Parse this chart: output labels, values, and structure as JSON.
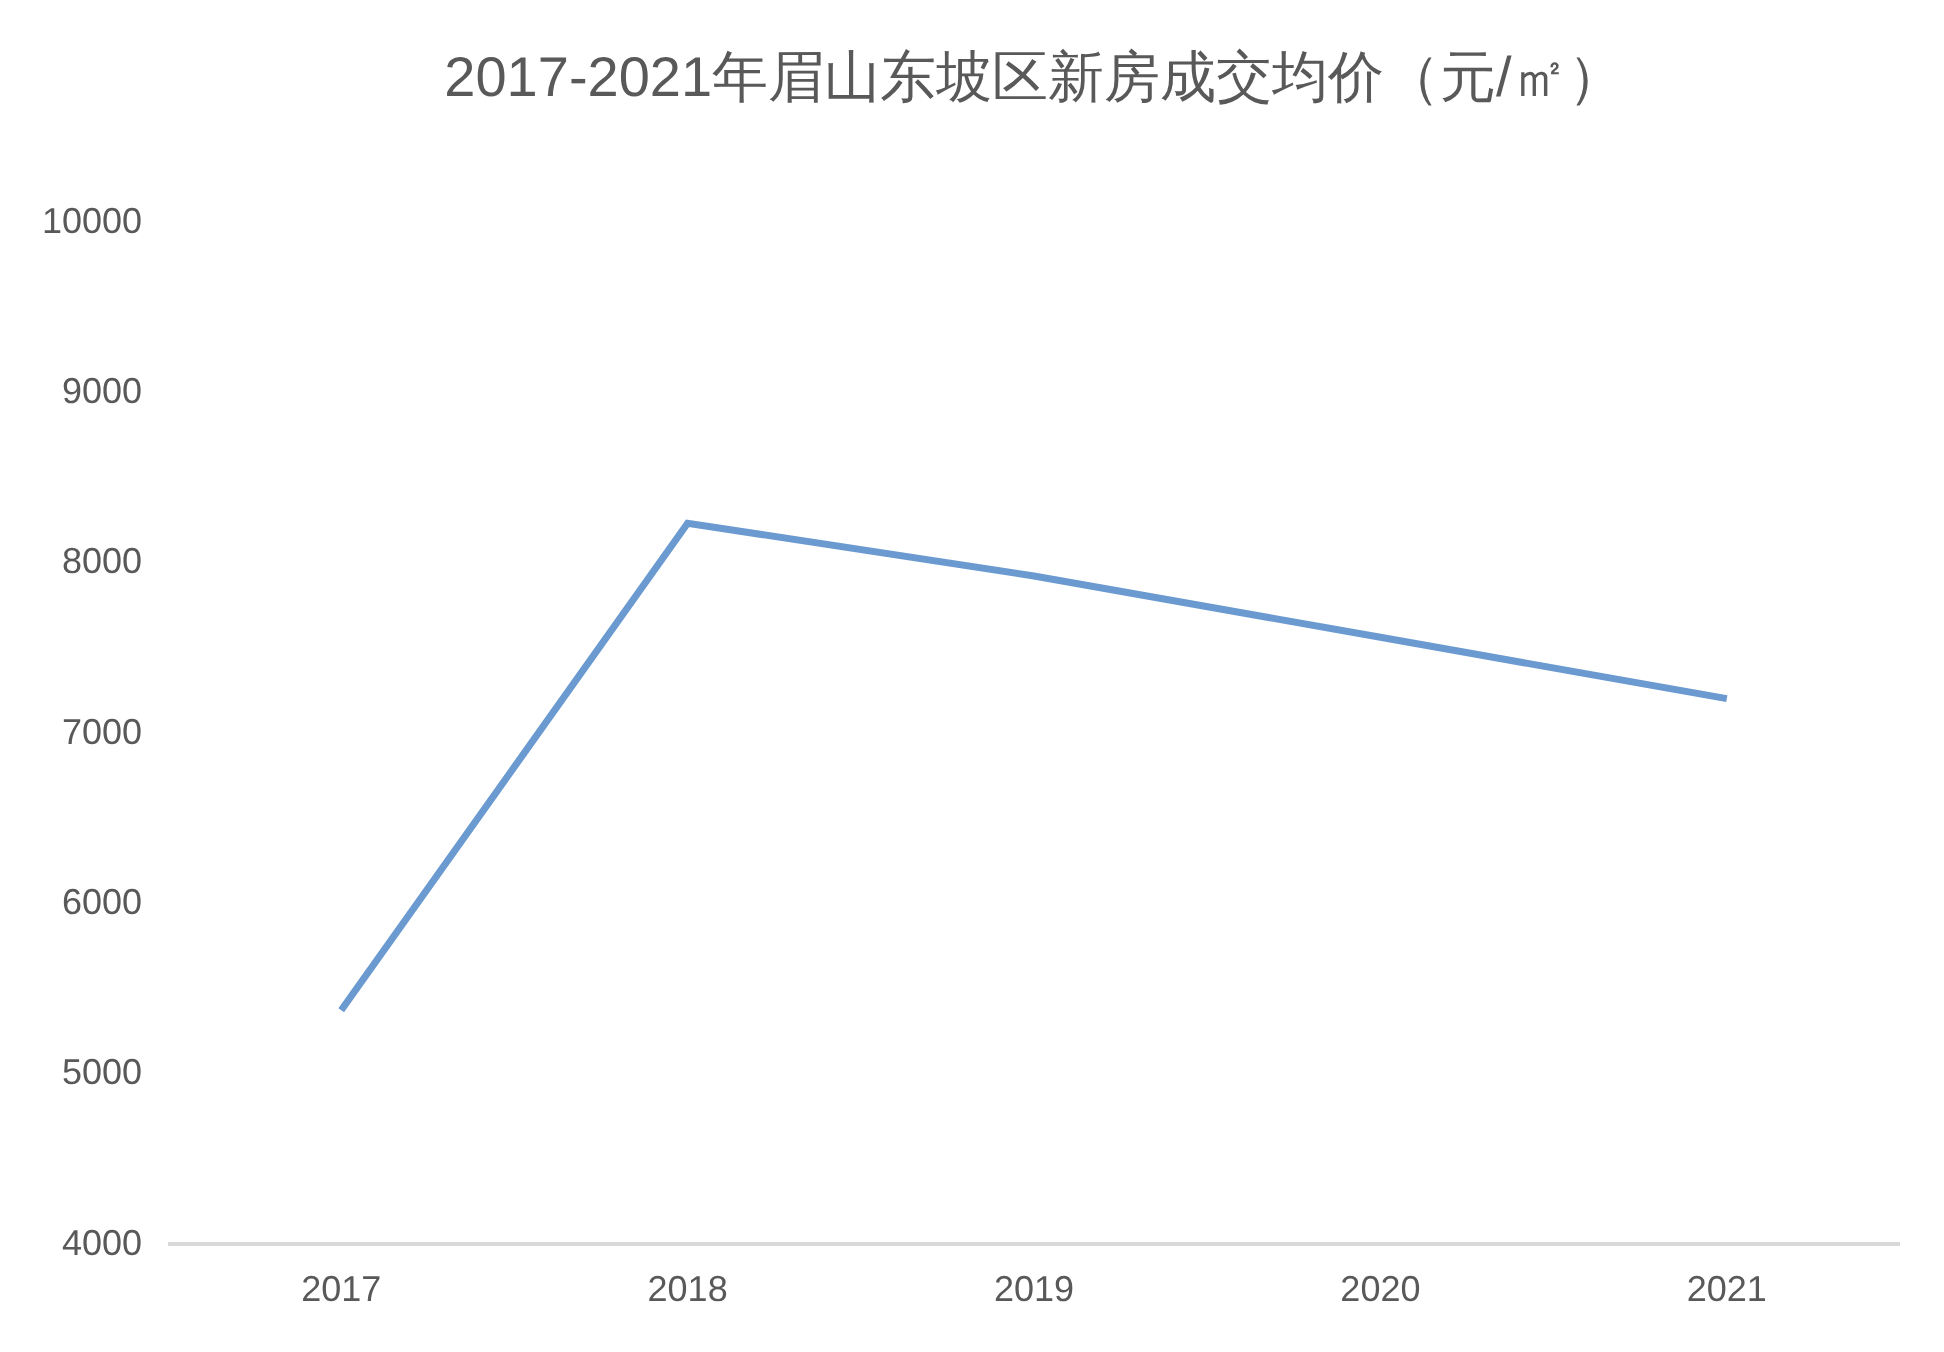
{
  "chart_data": {
    "type": "line",
    "title": "2017-2021年眉山东坡区新房成交均价（元/㎡）",
    "categories": [
      "2017",
      "2018",
      "2019",
      "2020",
      "2021"
    ],
    "series": [
      {
        "color": "#6b9ad0",
        "values": [
          5360,
          8220,
          7910,
          7550,
          7190
        ]
      }
    ],
    "ylim": [
      4000,
      10000
    ],
    "yticks": [
      4000,
      5000,
      6000,
      7000,
      8000,
      9000,
      10000
    ],
    "grid": false,
    "line_style": "solid"
  }
}
